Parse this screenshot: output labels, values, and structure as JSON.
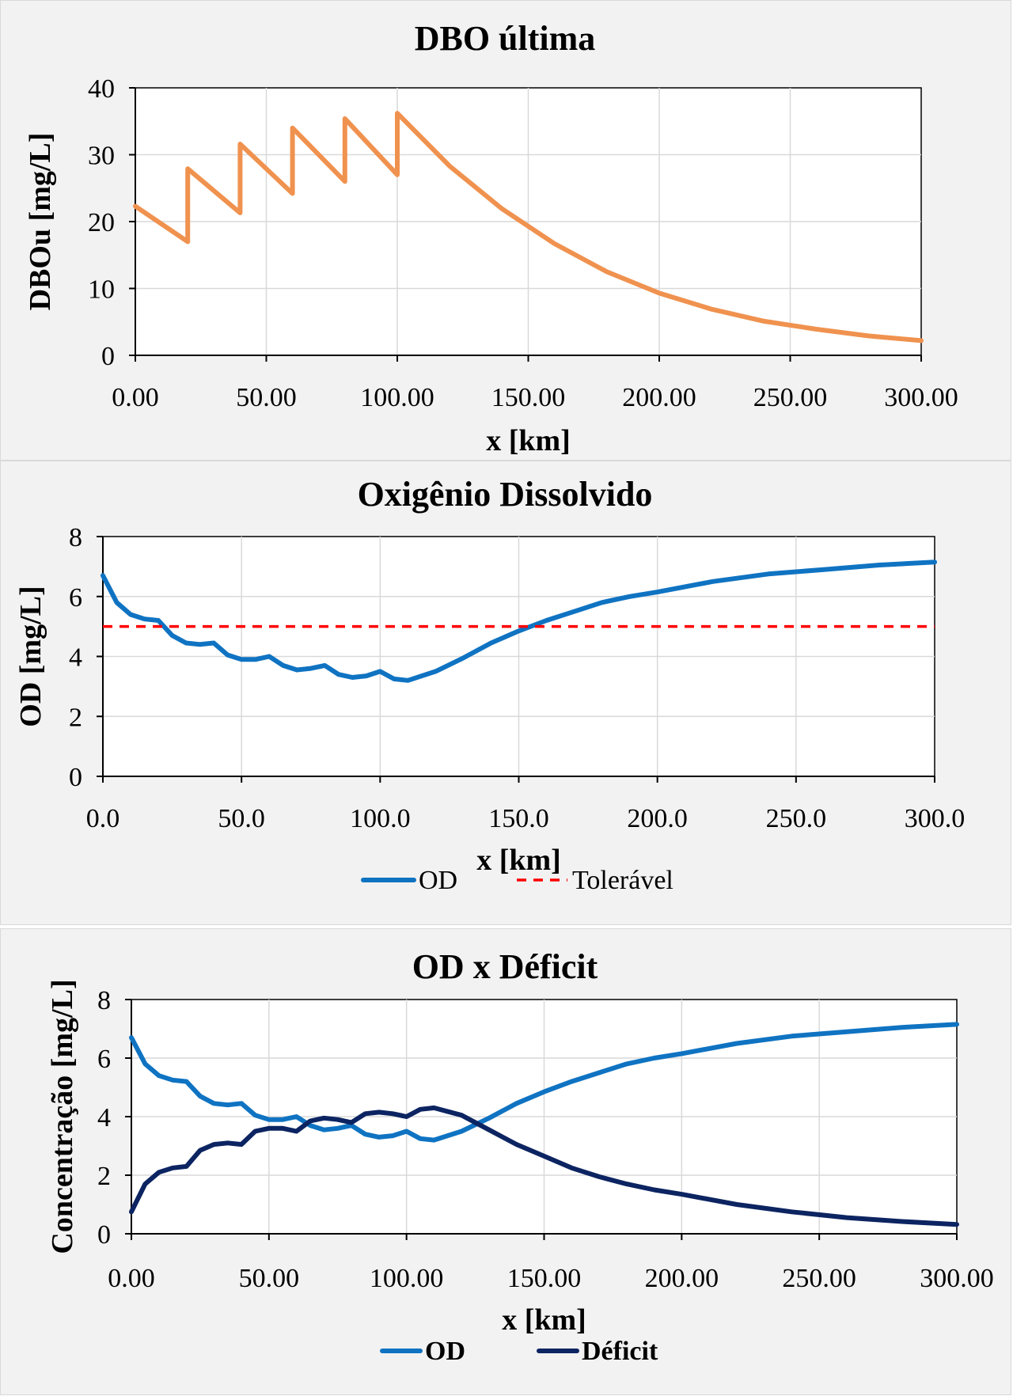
{
  "chart_data": [
    {
      "type": "line",
      "title": "DBO última",
      "xlabel": "x [km]",
      "ylabel": "DBOu [mg/L]",
      "xlim": [
        0,
        300
      ],
      "ylim": [
        0,
        40
      ],
      "xticks": [
        "0.00",
        "50.00",
        "100.00",
        "150.00",
        "200.00",
        "250.00",
        "300.00"
      ],
      "yticks": [
        "0",
        "10",
        "20",
        "30",
        "40"
      ],
      "grid": true,
      "color": "#f0924f",
      "series": [
        {
          "x": [
            0,
            20,
            20,
            40,
            40,
            60,
            60,
            80,
            80,
            100,
            100,
            120,
            140,
            160,
            180,
            200,
            220,
            240,
            260,
            280,
            300
          ],
          "values": [
            22.3,
            17.0,
            27.9,
            21.3,
            31.6,
            24.2,
            34.0,
            26.0,
            35.4,
            27.0,
            36.2,
            28.3,
            21.9,
            16.7,
            12.5,
            9.3,
            6.9,
            5.1,
            3.9,
            2.9,
            2.2
          ]
        }
      ]
    },
    {
      "type": "line",
      "title": "Oxigênio Dissolvido",
      "xlabel": "x [km]",
      "ylabel": "OD [mg/L]",
      "xlim": [
        0,
        300
      ],
      "ylim": [
        0,
        8
      ],
      "xticks": [
        "0.0",
        "50.0",
        "100.0",
        "150.0",
        "200.0",
        "250.0",
        "300.0"
      ],
      "yticks": [
        "0",
        "2",
        "4",
        "6",
        "8"
      ],
      "grid": true,
      "legend": "bottom",
      "series": [
        {
          "name": "OD",
          "color": "#0f73c2",
          "x": [
            0,
            5,
            10,
            15,
            20,
            25,
            30,
            35,
            40,
            45,
            50,
            55,
            60,
            65,
            70,
            75,
            80,
            85,
            90,
            95,
            100,
            105,
            110,
            120,
            130,
            140,
            150,
            160,
            170,
            180,
            190,
            200,
            220,
            240,
            260,
            280,
            300
          ],
          "values": [
            6.7,
            5.8,
            5.4,
            5.25,
            5.2,
            4.7,
            4.45,
            4.4,
            4.45,
            4.05,
            3.9,
            3.9,
            4.0,
            3.7,
            3.55,
            3.6,
            3.7,
            3.4,
            3.3,
            3.35,
            3.5,
            3.25,
            3.2,
            3.5,
            3.95,
            4.45,
            4.85,
            5.2,
            5.5,
            5.8,
            6.0,
            6.15,
            6.5,
            6.75,
            6.9,
            7.05,
            7.15
          ]
        },
        {
          "name": "Tolerável",
          "color": "#ff0000",
          "x": [
            0,
            300
          ],
          "values": [
            5,
            5
          ]
        }
      ]
    },
    {
      "type": "line",
      "title": "OD x Déficit",
      "xlabel": "x [km]",
      "ylabel": "Concentração  [mg/L]",
      "xlim": [
        0,
        300
      ],
      "ylim": [
        0,
        8
      ],
      "xticks": [
        "0.00",
        "50.00",
        "100.00",
        "150.00",
        "200.00",
        "250.00",
        "300.00"
      ],
      "yticks": [
        "0",
        "2",
        "4",
        "6",
        "8"
      ],
      "grid": true,
      "legend": "bottom",
      "series": [
        {
          "name": "OD",
          "color": "#0f73c2",
          "x": [
            0,
            5,
            10,
            15,
            20,
            25,
            30,
            35,
            40,
            45,
            50,
            55,
            60,
            65,
            70,
            75,
            80,
            85,
            90,
            95,
            100,
            105,
            110,
            120,
            130,
            140,
            150,
            160,
            170,
            180,
            190,
            200,
            220,
            240,
            260,
            280,
            300
          ],
          "values": [
            6.7,
            5.8,
            5.4,
            5.25,
            5.2,
            4.7,
            4.45,
            4.4,
            4.45,
            4.05,
            3.9,
            3.9,
            4.0,
            3.7,
            3.55,
            3.6,
            3.7,
            3.4,
            3.3,
            3.35,
            3.5,
            3.25,
            3.2,
            3.5,
            3.95,
            4.45,
            4.85,
            5.2,
            5.5,
            5.8,
            6.0,
            6.15,
            6.5,
            6.75,
            6.9,
            7.05,
            7.15
          ]
        },
        {
          "name": "Déficit",
          "color": "#0c2461",
          "x": [
            0,
            5,
            10,
            15,
            20,
            25,
            30,
            35,
            40,
            45,
            50,
            55,
            60,
            65,
            70,
            75,
            80,
            85,
            90,
            95,
            100,
            105,
            110,
            120,
            130,
            140,
            150,
            160,
            170,
            180,
            190,
            200,
            220,
            240,
            260,
            280,
            300
          ],
          "values": [
            0.75,
            1.7,
            2.1,
            2.25,
            2.3,
            2.85,
            3.05,
            3.1,
            3.05,
            3.5,
            3.6,
            3.6,
            3.5,
            3.85,
            3.95,
            3.9,
            3.8,
            4.1,
            4.15,
            4.1,
            4.0,
            4.25,
            4.3,
            4.05,
            3.55,
            3.05,
            2.65,
            2.25,
            1.95,
            1.7,
            1.5,
            1.35,
            1.0,
            0.75,
            0.55,
            0.42,
            0.32
          ]
        }
      ]
    }
  ]
}
